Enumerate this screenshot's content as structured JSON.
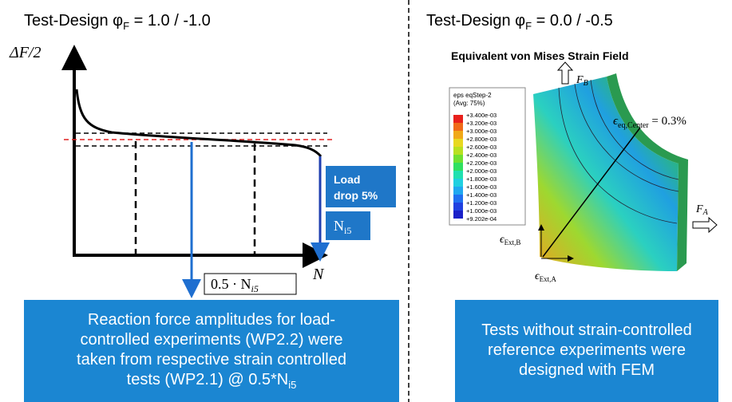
{
  "left": {
    "title": {
      "prefix": "Test-Design φ",
      "subscript": "F",
      "suffix": " = 1.0 / -1.0"
    },
    "y_axis_label": "ΔF/2",
    "x_axis_label": "N",
    "load_drop": [
      "Load",
      "drop 5%"
    ],
    "n_i5": {
      "main": "N",
      "subscript": "i5"
    },
    "half_n": {
      "main": "0.5 · N",
      "subscript": "i5"
    },
    "summary": {
      "lines": [
        "Reaction force amplitudes for load-",
        "controlled experiments (WP2.2) were",
        "taken from respective strain controlled"
      ],
      "last_line": "tests (WP2.1) @ 0.5*N",
      "last_subscript": "i5"
    }
  },
  "right": {
    "title": {
      "prefix": "Test-Design φ",
      "subscript": "F",
      "suffix": " = 0.0 / -0.5"
    },
    "figure_title": "Equivalent von Mises Strain Field",
    "legend": {
      "title": "eps eqStep-2",
      "subtitle": "(Avg: 75%)",
      "labels": [
        "+3.400e-03",
        "+3.200e-03",
        "+3.000e-03",
        "+2.800e-03",
        "+2.600e-03",
        "+2.400e-03",
        "+2.200e-03",
        "+2.000e-03",
        "+1.800e-03",
        "+1.600e-03",
        "+1.400e-03",
        "+1.200e-03",
        "+1.000e-03",
        "+9.202e-04"
      ]
    },
    "force_b": {
      "main": "F",
      "subscript": "B"
    },
    "force_a": {
      "main": "F",
      "subscript": "A"
    },
    "eps_center": {
      "main": "ϵ",
      "subscript": "eq,Center",
      "suffix": " = 0.3%"
    },
    "eps_b": {
      "main": "ϵ",
      "subscript": "Ext,B"
    },
    "eps_a": {
      "main": "ϵ",
      "subscript": "Ext,A"
    },
    "summary": [
      "Tests without strain-controlled",
      "reference experiments were",
      "designed with FEM"
    ]
  }
}
